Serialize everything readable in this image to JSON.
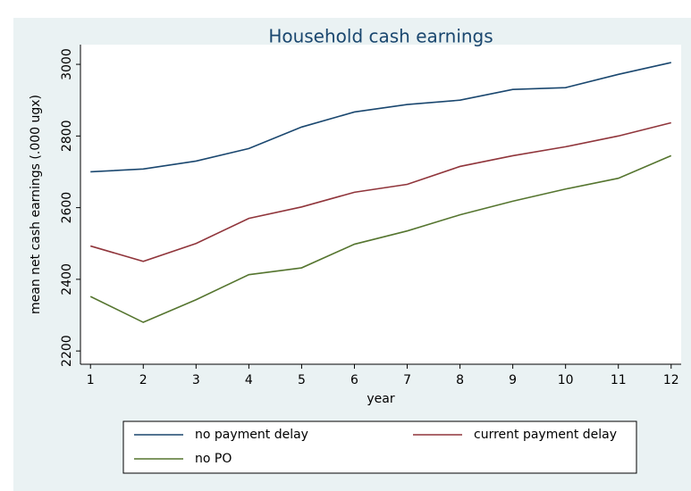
{
  "chart_data": {
    "type": "line",
    "title": "Household cash earnings",
    "x_label": "year",
    "y_label": "mean net cash earnings (.000 ugx)",
    "x": [
      1,
      2,
      3,
      4,
      5,
      6,
      7,
      8,
      9,
      10,
      11,
      12
    ],
    "series": [
      {
        "name": "no payment delay",
        "color": "#1a476f",
        "values": [
          2700,
          2708,
          2730,
          2765,
          2825,
          2867,
          2888,
          2900,
          2930,
          2935,
          2972,
          3005
        ]
      },
      {
        "name": "current payment delay",
        "color": "#90353b",
        "values": [
          2493,
          2450,
          2500,
          2570,
          2602,
          2643,
          2665,
          2715,
          2745,
          2770,
          2800,
          2837
        ]
      },
      {
        "name": "no PO",
        "color": "#55752f",
        "values": [
          2352,
          2280,
          2343,
          2413,
          2432,
          2498,
          2535,
          2580,
          2618,
          2652,
          2682,
          2745
        ]
      }
    ],
    "xlim": [
      0.81,
      12.19
    ],
    "xticks": [
      1,
      2,
      3,
      4,
      5,
      6,
      7,
      8,
      9,
      10,
      11,
      12
    ],
    "ylim": [
      2163,
      3055
    ],
    "yticks": [
      2200,
      2400,
      2600,
      2800,
      3000
    ],
    "grid": false
  }
}
